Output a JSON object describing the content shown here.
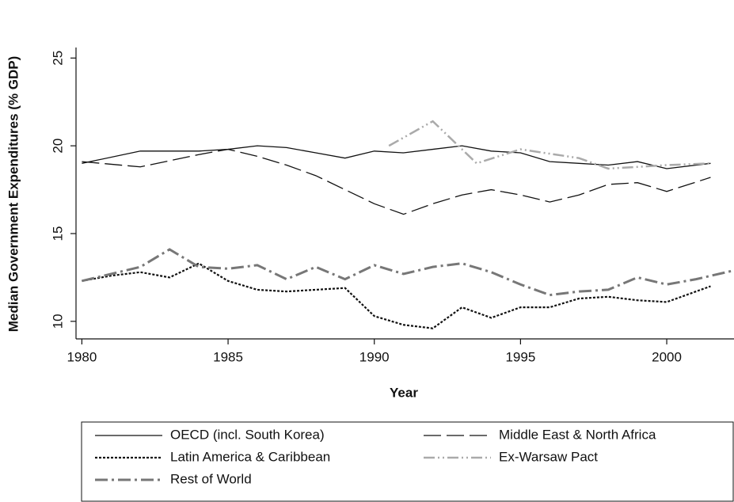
{
  "chart_data": {
    "type": "line",
    "x_label": "Year",
    "y_label": "Median Government Expenditures (% GDP)",
    "xlim": [
      1979.8,
      2002.3
    ],
    "xticks": [
      1980,
      1985,
      1990,
      1995,
      2000
    ],
    "ylim": [
      9,
      25.6
    ],
    "yticks": [
      10,
      15,
      20,
      25
    ],
    "grid": false,
    "legend": "bottom",
    "series": [
      {
        "name": "OECD (incl. South Korea)",
        "color": "#111111",
        "line_style": "solid",
        "x": [
          1980,
          1982,
          1983,
          1984,
          1985,
          1986,
          1987,
          1988,
          1989,
          1990,
          1991,
          1992,
          1993,
          1994,
          1995,
          1996,
          1997,
          1998,
          1999,
          2000,
          2001.5
        ],
        "values": [
          19.0,
          19.7,
          19.7,
          19.7,
          19.8,
          20.0,
          19.9,
          19.6,
          19.3,
          19.7,
          19.6,
          19.8,
          20.0,
          19.7,
          19.6,
          19.1,
          19.0,
          18.9,
          19.1,
          18.7,
          19.0
        ]
      },
      {
        "name": "Middle East & North Africa",
        "color": "#111111",
        "line_style": "long-dash",
        "x": [
          1980,
          1982,
          1984,
          1985,
          1986,
          1987,
          1988,
          1989,
          1990,
          1991,
          1992,
          1993,
          1994,
          1995,
          1996,
          1997,
          1998,
          1999,
          2000,
          2001.5
        ],
        "values": [
          19.1,
          18.8,
          19.5,
          19.8,
          19.4,
          18.9,
          18.3,
          17.5,
          16.7,
          16.1,
          16.7,
          17.2,
          17.5,
          17.2,
          16.8,
          17.2,
          17.8,
          17.9,
          17.4,
          18.2
        ]
      },
      {
        "name": "Latin America & Caribbean",
        "color": "#111111",
        "line_style": "dot",
        "x": [
          1980,
          1981,
          1982,
          1983,
          1984,
          1985,
          1986,
          1987,
          1988,
          1989,
          1990,
          1991,
          1992,
          1993,
          1994,
          1995,
          1996,
          1997,
          1998,
          1999,
          2000,
          2001.5
        ],
        "values": [
          12.3,
          12.6,
          12.8,
          12.5,
          13.3,
          12.3,
          11.8,
          11.7,
          11.8,
          11.9,
          10.3,
          9.8,
          9.6,
          10.8,
          10.2,
          10.8,
          10.8,
          11.3,
          11.4,
          11.2,
          11.1,
          12.0
        ]
      },
      {
        "name": "Ex-Warsaw Pact",
        "color": "#aaaaaa",
        "line_style": "dash-dot-dot",
        "x": [
          1990.5,
          1992,
          1993.5,
          1995,
          1997,
          1998,
          1999,
          2000,
          2001.5
        ],
        "values": [
          20.0,
          21.4,
          19.0,
          19.8,
          19.3,
          18.7,
          18.8,
          18.9,
          19.0
        ]
      },
      {
        "name": "Rest of World",
        "color": "#777777",
        "line_style": "dash-dot",
        "x": [
          1980,
          1982,
          1983,
          1984,
          1985,
          1986,
          1987,
          1988,
          1989,
          1990,
          1991,
          1992,
          1993,
          1994,
          1995,
          1996,
          1997,
          1998,
          1999,
          2000,
          2001,
          2002.3
        ],
        "values": [
          12.3,
          13.1,
          14.1,
          13.1,
          13.0,
          13.2,
          12.4,
          13.1,
          12.4,
          13.2,
          12.7,
          13.1,
          13.3,
          12.8,
          12.1,
          11.5,
          11.7,
          11.8,
          12.5,
          12.1,
          12.4,
          12.9
        ]
      }
    ]
  }
}
